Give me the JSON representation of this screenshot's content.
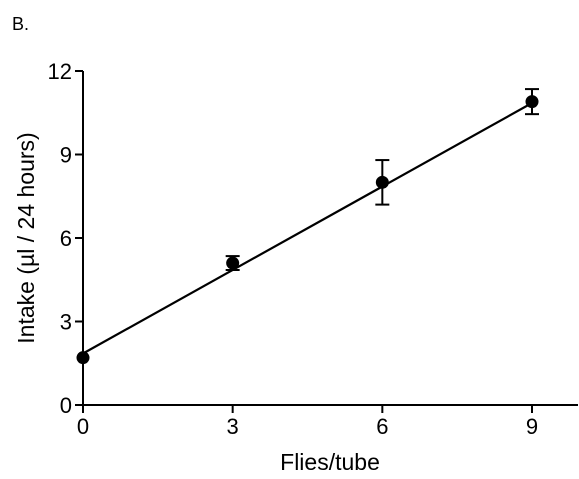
{
  "panel_label": "B.",
  "chart_data": {
    "type": "scatter",
    "xlabel": "Flies/tube",
    "ylabel": "Intake (µl / 24 hours)",
    "x_ticks": [
      0,
      3,
      6,
      9
    ],
    "y_ticks": [
      0,
      3,
      6,
      9,
      12
    ],
    "xlim": [
      0,
      9.9
    ],
    "ylim": [
      0,
      12
    ],
    "grid": false,
    "points": [
      {
        "x": 0,
        "y": 1.7,
        "err": 0.0
      },
      {
        "x": 3,
        "y": 5.1,
        "err": 0.25
      },
      {
        "x": 6,
        "y": 8.0,
        "err": 0.8
      },
      {
        "x": 9,
        "y": 10.9,
        "err": 0.45
      }
    ],
    "fit_line": {
      "x0": 0,
      "y0": 1.85,
      "x1": 9,
      "y1": 10.85
    }
  }
}
